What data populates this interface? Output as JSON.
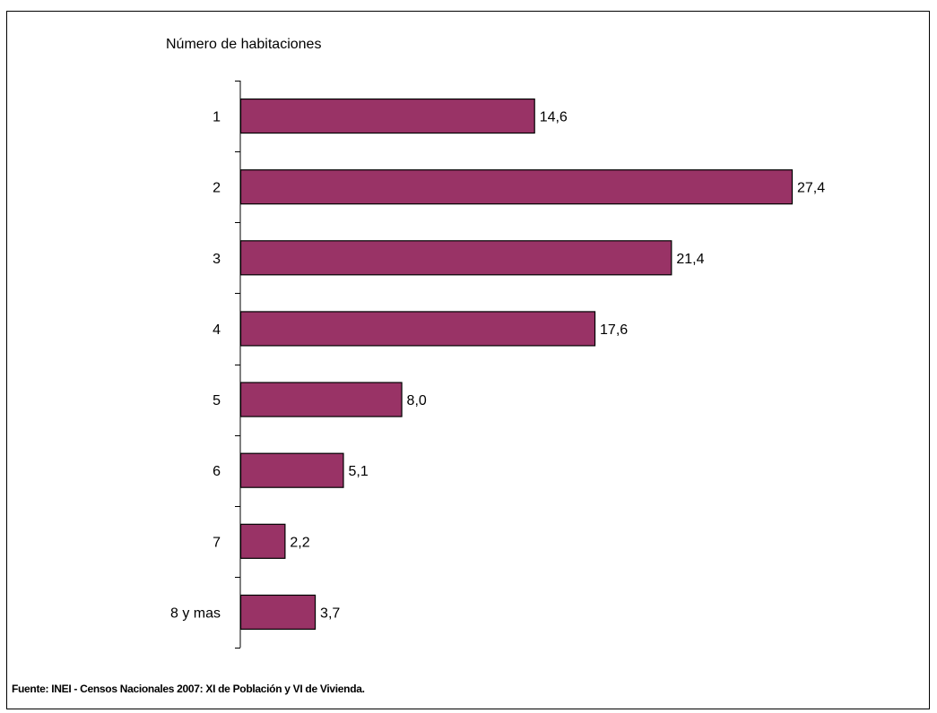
{
  "chart_data": {
    "type": "bar",
    "orientation": "horizontal",
    "title": "",
    "ylabel": "Número de habitaciones",
    "xlabel": "",
    "categories": [
      "1",
      "2",
      "3",
      "4",
      "5",
      "6",
      "7",
      "8 y  mas"
    ],
    "values": [
      14.6,
      27.4,
      21.4,
      17.6,
      8.0,
      5.1,
      2.2,
      3.7
    ],
    "data_labels": [
      "14,6",
      "27,4",
      "21,4",
      "17,6",
      "8,0",
      "5,1",
      "2,2",
      "3,7"
    ],
    "xlim": [
      0,
      27.4
    ],
    "grid": false,
    "legend": "none",
    "bar_color": "#993366"
  },
  "source_note": "Fuente: INEI - Censos Nacionales 2007: XI de Población y VI de Vivienda."
}
